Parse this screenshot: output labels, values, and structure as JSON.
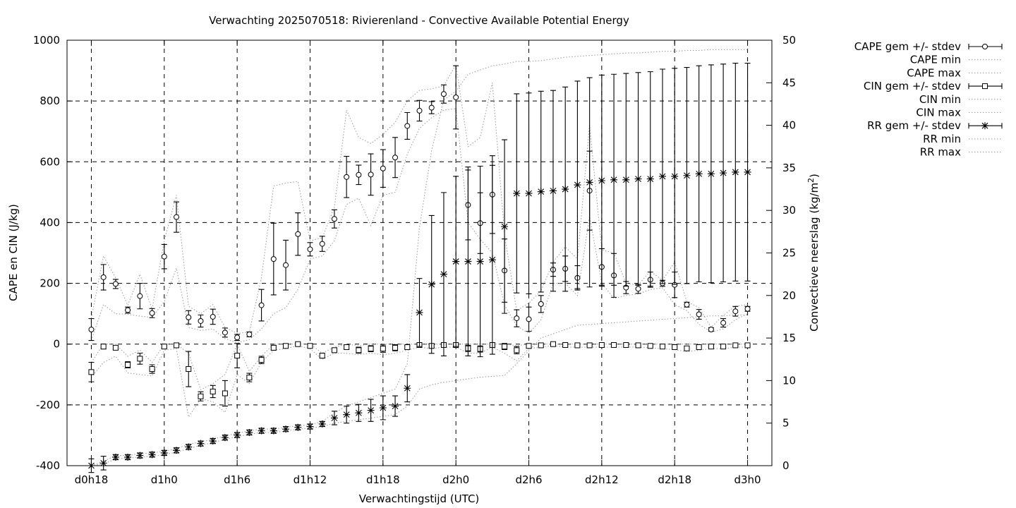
{
  "chart_data": {
    "type": "line",
    "title": "Verwachting 2025070518: Rivierenland - Convective Available Potential Energy",
    "xlabel": "Verwachtingstijd (UTC)",
    "ylabel": "CAPE en CIN (J/kg)",
    "y2label": "Convectieve neerslag (kg/m",
    "y2label_sup": "2",
    "y2label_end": ")",
    "x_hours": [
      18,
      19,
      20,
      21,
      22,
      23,
      24,
      25,
      26,
      27,
      28,
      29,
      30,
      31,
      32,
      33,
      34,
      35,
      36,
      37,
      38,
      39,
      40,
      41,
      42,
      43,
      44,
      45,
      46,
      47,
      48,
      49,
      50,
      51,
      52,
      53,
      54,
      55,
      56,
      57,
      58,
      59,
      60,
      61,
      62,
      63,
      64,
      65,
      66,
      67,
      68,
      69,
      70,
      71,
      72
    ],
    "xlim": [
      16,
      74
    ],
    "xticks": [
      18,
      24,
      30,
      36,
      42,
      48,
      54,
      60,
      66,
      72
    ],
    "xticklabels": [
      "d0h18",
      "d1h0",
      "d1h6",
      "d1h12",
      "d1h18",
      "d2h0",
      "d2h6",
      "d2h12",
      "d2h18",
      "d3h0"
    ],
    "ylim": [
      -400,
      1000
    ],
    "yticks": [
      -400,
      -200,
      0,
      200,
      400,
      600,
      800,
      1000
    ],
    "yticklabels": [
      "-400",
      "-200",
      "0",
      "200",
      "400",
      "600",
      "800",
      "1000"
    ],
    "y2lim": [
      0,
      50
    ],
    "y2ticks": [
      0,
      5,
      10,
      15,
      20,
      25,
      30,
      35,
      40,
      45,
      50
    ],
    "y2ticklabels": [
      "0",
      "5",
      "10",
      "15",
      "20",
      "25",
      "30",
      "35",
      "40",
      "45",
      "50"
    ],
    "grid": true,
    "legend_position": "right",
    "legend": [
      "CAPE gem +/- stdev",
      "CAPE min",
      "CAPE max",
      "CIN gem +/- stdev",
      "CIN min",
      "CIN max",
      "RR gem +/- stdev",
      "RR min",
      "RR max"
    ],
    "series": [
      {
        "name": "CAPE gem +/- stdev",
        "axis": "left",
        "marker": "circle",
        "values": [
          48,
          220,
          198,
          112,
          158,
          102,
          288,
          418,
          88,
          76,
          90,
          38,
          22,
          32,
          128,
          280,
          260,
          362,
          312,
          330,
          412,
          550,
          557,
          558,
          578,
          614,
          718,
          768,
          778,
          823,
          812,
          458,
          398,
          492,
          242,
          85,
          82,
          132,
          245,
          248,
          218,
          505,
          254,
          226,
          186,
          182,
          212,
          200,
          195,
          130,
          98,
          48,
          70,
          108,
          116
        ],
        "stdev": [
          36,
          42,
          15,
          10,
          42,
          15,
          40,
          50,
          22,
          20,
          25,
          15,
          10,
          8,
          52,
          118,
          82,
          70,
          22,
          25,
          30,
          68,
          32,
          68,
          62,
          66,
          44,
          34,
          20,
          30,
          104,
          115,
          100,
          128,
          104,
          28,
          40,
          28,
          22,
          42,
          40,
          130,
          60,
          72,
          20,
          15,
          25,
          10,
          42,
          8,
          16,
          6,
          14,
          16,
          8
        ]
      },
      {
        "name": "CAPE min",
        "axis": "left",
        "marker": "none",
        "values": [
          12,
          130,
          100,
          98,
          92,
          88,
          140,
          250,
          55,
          45,
          50,
          18,
          5,
          15,
          50,
          100,
          120,
          180,
          280,
          290,
          340,
          460,
          480,
          390,
          490,
          500,
          625,
          710,
          745,
          770,
          775,
          400,
          345,
          300,
          128,
          60,
          35,
          80,
          200,
          200,
          160,
          420,
          200,
          150,
          160,
          165,
          180,
          185,
          130,
          110,
          65,
          40,
          50,
          80,
          100
        ]
      },
      {
        "name": "CAPE max",
        "axis": "left",
        "marker": "none",
        "values": [
          85,
          290,
          218,
          128,
          230,
          115,
          340,
          490,
          125,
          100,
          130,
          55,
          35,
          40,
          220,
          520,
          530,
          535,
          340,
          350,
          450,
          770,
          680,
          660,
          690,
          730,
          800,
          835,
          840,
          850,
          920,
          650,
          680,
          860,
          360,
          110,
          135,
          175,
          270,
          320,
          280,
          720,
          310,
          300,
          200,
          195,
          240,
          210,
          270,
          140,
          120,
          55,
          95,
          125,
          130
        ]
      },
      {
        "name": "CIN gem +/- stdev",
        "axis": "left",
        "marker": "square",
        "values": [
          -92,
          -8,
          -12,
          -68,
          -48,
          -82,
          -8,
          -4,
          -82,
          -172,
          -156,
          -162,
          -38,
          -110,
          -52,
          -12,
          -6,
          0,
          -6,
          -38,
          -20,
          -10,
          -20,
          -15,
          -15,
          -12,
          -10,
          -3,
          -6,
          -3,
          -3,
          -14,
          -16,
          -3,
          -8,
          -20,
          -6,
          -4,
          0,
          -3,
          -4,
          -4,
          -3,
          -3,
          -3,
          -4,
          -6,
          -8,
          -10,
          -14,
          -10,
          -8,
          -8,
          -4,
          -4
        ],
        "stdev": [
          32,
          8,
          6,
          10,
          18,
          14,
          5,
          5,
          58,
          15,
          20,
          42,
          40,
          14,
          12,
          8,
          5,
          3,
          5,
          8,
          6,
          6,
          10,
          10,
          12,
          10,
          5,
          3,
          5,
          3,
          3,
          10,
          10,
          3,
          10,
          12,
          5,
          3,
          3,
          3,
          3,
          3,
          3,
          3,
          3,
          3,
          3,
          3,
          3,
          5,
          3,
          3,
          3,
          3,
          3
        ]
      },
      {
        "name": "CIN min",
        "axis": "left",
        "marker": "none",
        "values": [
          -110,
          -60,
          -40,
          -95,
          -100,
          -105,
          -20,
          -15,
          -240,
          -180,
          -190,
          -225,
          -100,
          -130,
          -60,
          -20,
          -15,
          -5,
          -15,
          -50,
          -30,
          -30,
          -35,
          -30,
          -35,
          -30,
          -20,
          -10,
          -15,
          -10,
          -10,
          -30,
          -30,
          -10,
          -30,
          -55,
          -15,
          -10,
          -5,
          -10,
          -10,
          -10,
          -10,
          -10,
          -10,
          -10,
          -12,
          -15,
          -18,
          -25,
          -20,
          -15,
          -15,
          -10,
          -10
        ]
      },
      {
        "name": "CIN max",
        "axis": "left",
        "marker": "none",
        "values": [
          -60,
          0,
          0,
          -40,
          -20,
          -60,
          0,
          0,
          -30,
          -150,
          -130,
          -100,
          0,
          -90,
          -40,
          0,
          0,
          0,
          0,
          -30,
          -10,
          0,
          -5,
          0,
          0,
          0,
          0,
          0,
          0,
          0,
          0,
          0,
          0,
          0,
          0,
          -5,
          0,
          0,
          0,
          0,
          0,
          0,
          0,
          0,
          0,
          0,
          0,
          0,
          0,
          0,
          0,
          0,
          0,
          0,
          0
        ]
      },
      {
        "name": "RR gem +/- stdev",
        "axis": "right",
        "marker": "cross",
        "values": [
          0,
          0.3,
          1,
          1,
          1.2,
          1.3,
          1.5,
          1.8,
          2.2,
          2.6,
          2.9,
          3.3,
          3.6,
          3.9,
          4.1,
          4.1,
          4.3,
          4.5,
          4.6,
          4.9,
          5.6,
          6,
          6.2,
          6.5,
          6.8,
          7,
          9.1,
          18,
          21.3,
          22.5,
          24,
          24,
          24,
          24.2,
          28.1,
          32,
          32,
          32.2,
          32.3,
          32.5,
          33,
          33.3,
          33.5,
          33.6,
          33.6,
          33.7,
          33.7,
          34,
          34,
          34.1,
          34.3,
          34.3,
          34.4,
          34.5,
          34.5
        ],
        "stdev": [
          0.8,
          0.8,
          0.3,
          0.3,
          0.3,
          0.3,
          0.3,
          0.3,
          0.3,
          0.3,
          0.3,
          0.3,
          0.3,
          0.3,
          0.3,
          0.3,
          0.3,
          0.3,
          0.3,
          0.3,
          0.8,
          1,
          1,
          1.3,
          1.4,
          1.2,
          1.6,
          4,
          8.1,
          9.6,
          10,
          11.1,
          11.2,
          11.1,
          10.2,
          11.7,
          11.8,
          11.8,
          11.8,
          12,
          12.2,
          12.3,
          12.4,
          12.4,
          12.5,
          12.5,
          12.6,
          12.6,
          12.7,
          12.7,
          12.7,
          12.8,
          12.8,
          12.8,
          12.8
        ]
      },
      {
        "name": "RR min",
        "axis": "right",
        "marker": "none",
        "values": [
          0,
          0.2,
          0.8,
          0.9,
          1,
          1.1,
          1.3,
          1.6,
          2,
          2.4,
          2.7,
          3.1,
          3.4,
          3.7,
          3.9,
          3.9,
          4.1,
          4.3,
          4.4,
          4.6,
          5,
          5.2,
          5.4,
          5.6,
          5.8,
          6,
          7,
          9,
          9.5,
          9.8,
          10,
          10.2,
          10.4,
          10.5,
          10.6,
          12,
          13.5,
          15,
          15.5,
          16,
          16.5,
          16.6,
          16.7,
          16.8,
          16.9,
          17,
          17.1,
          17.2,
          17.3,
          17.4,
          17.5,
          17.6,
          17.6,
          17.7,
          17.7
        ]
      },
      {
        "name": "RR max",
        "axis": "right",
        "marker": "none",
        "values": [
          0,
          0.5,
          1.2,
          1.2,
          1.4,
          1.5,
          1.7,
          2,
          2.5,
          2.8,
          3.1,
          3.5,
          3.8,
          4.1,
          4.3,
          4.3,
          4.5,
          4.7,
          4.8,
          5.2,
          6.2,
          7,
          7.5,
          8,
          8.5,
          9,
          12,
          28,
          37,
          43,
          44,
          46,
          46.5,
          47,
          47.2,
          47.5,
          47.5,
          47.6,
          47.8,
          48,
          48.1,
          48.2,
          48.3,
          48.4,
          48.5,
          48.5,
          48.6,
          48.7,
          48.7,
          48.8,
          48.8,
          48.9,
          48.9,
          48.9,
          48.9
        ]
      }
    ]
  }
}
